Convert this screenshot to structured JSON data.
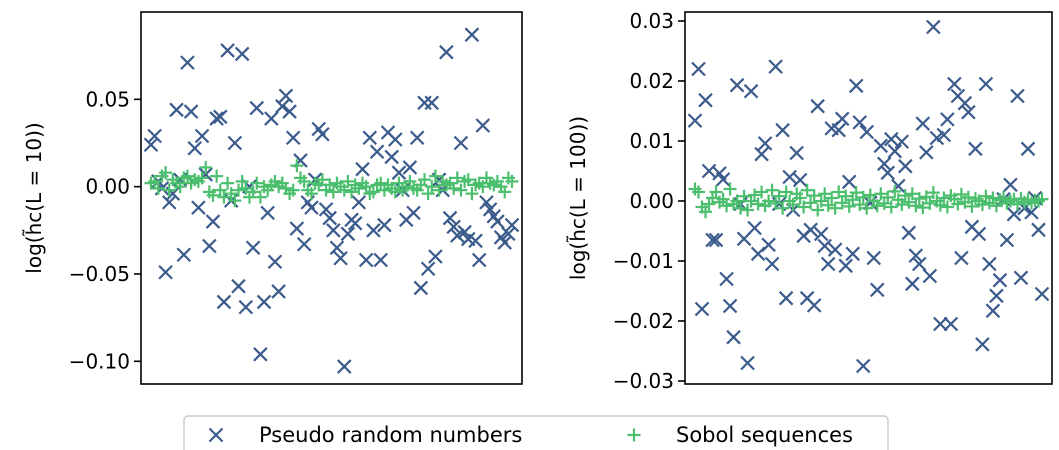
{
  "legend": {
    "placement": "bottom-center",
    "entries": [
      {
        "label": "Pseudo random numbers",
        "marker": "x",
        "color": "#3b5b8c"
      },
      {
        "label": "Sobol sequences",
        "marker": "+",
        "color": "#4cbf6e"
      }
    ]
  },
  "chart_data": [
    {
      "type": "scatter",
      "title": "",
      "xlabel": "",
      "ylabel": "log(h̃c(L = 10))",
      "x_ticks_visible": false,
      "ylim": [
        -0.113,
        0.1
      ],
      "yticks": [
        {
          "value": 0.05,
          "label": "0.05"
        },
        {
          "value": 0.0,
          "label": "0.00"
        },
        {
          "value": -0.05,
          "label": "−0.05"
        },
        {
          "value": -0.1,
          "label": "−0.10"
        }
      ],
      "grid": false,
      "series": [
        {
          "name": "Pseudo random numbers",
          "marker": "x",
          "color": "#3b5b8c",
          "x": [
            1,
            2,
            3,
            4,
            5,
            6,
            7,
            8,
            9,
            10,
            11,
            12,
            13,
            14,
            15,
            16,
            17,
            18,
            19,
            20,
            21,
            22,
            23,
            24,
            25,
            26,
            27,
            28,
            29,
            30,
            31,
            32,
            33,
            34,
            35,
            36,
            37,
            38,
            39,
            40,
            41,
            42,
            43,
            44,
            45,
            46,
            47,
            48,
            49,
            50,
            51,
            52,
            53,
            54,
            55,
            56,
            57,
            58,
            59,
            60,
            61,
            62,
            63,
            64,
            65,
            66,
            67,
            68,
            69,
            70,
            71,
            72,
            73,
            74,
            75,
            76,
            77,
            78,
            79,
            80,
            81,
            82,
            83,
            84,
            85,
            86,
            87,
            88,
            89,
            90,
            91,
            92,
            93,
            94,
            95,
            96,
            97,
            98,
            99,
            100
          ],
          "y": [
            0.024,
            0.029,
            0.003,
            -0.001,
            -0.049,
            -0.009,
            -0.004,
            0.044,
            0.004,
            -0.039,
            0.071,
            0.043,
            0.022,
            -0.012,
            0.029,
            0.007,
            -0.034,
            -0.02,
            0.039,
            0.04,
            -0.066,
            0.078,
            -0.008,
            0.025,
            -0.057,
            0.076,
            -0.069,
            0.0,
            -0.035,
            0.045,
            -0.096,
            -0.066,
            -0.015,
            0.039,
            -0.043,
            -0.06,
            0.046,
            0.052,
            0.043,
            0.028,
            -0.024,
            0.015,
            -0.033,
            -0.009,
            -0.012,
            0.004,
            0.033,
            0.03,
            -0.013,
            -0.018,
            -0.025,
            -0.035,
            -0.041,
            -0.103,
            -0.027,
            -0.019,
            -0.021,
            -0.009,
            0.01,
            -0.042,
            0.028,
            -0.025,
            0.02,
            -0.042,
            -0.022,
            0.031,
            0.017,
            0.027,
            0.008,
            -0.002,
            -0.019,
            0.011,
            -0.015,
            0.028,
            -0.058,
            0.048,
            -0.047,
            0.048,
            -0.04,
            0.004,
            -0.002,
            0.077,
            -0.018,
            -0.023,
            -0.028,
            0.025,
            -0.026,
            -0.03,
            0.087,
            -0.031,
            -0.042,
            0.035,
            -0.009,
            -0.013,
            -0.017,
            -0.02,
            -0.029,
            -0.032,
            -0.027,
            -0.022
          ]
        },
        {
          "name": "Sobol sequences",
          "marker": "+",
          "color": "#4cbf6e",
          "x": [
            1,
            2,
            3,
            4,
            5,
            6,
            7,
            8,
            9,
            10,
            11,
            12,
            13,
            14,
            15,
            16,
            17,
            18,
            19,
            20,
            21,
            22,
            23,
            24,
            25,
            26,
            27,
            28,
            29,
            30,
            31,
            32,
            33,
            34,
            35,
            36,
            37,
            38,
            39,
            40,
            41,
            42,
            43,
            44,
            45,
            46,
            47,
            48,
            49,
            50,
            51,
            52,
            53,
            54,
            55,
            56,
            57,
            58,
            59,
            60,
            61,
            62,
            63,
            64,
            65,
            66,
            67,
            68,
            69,
            70,
            71,
            72,
            73,
            74,
            75,
            76,
            77,
            78,
            79,
            80,
            81,
            82,
            83,
            84,
            85,
            86,
            87,
            88,
            89,
            90,
            91,
            92,
            93,
            94,
            95,
            96,
            97,
            98,
            99,
            100
          ],
          "y": [
            0.002,
            0.003,
            -0.001,
            0.006,
            0.008,
            -0.002,
            0.004,
            0.002,
            0.0,
            0.005,
            0.006,
            0.002,
            0.004,
            0.003,
            0.005,
            0.011,
            -0.003,
            -0.005,
            0.006,
            -0.002,
            -0.006,
            0.002,
            -0.004,
            -0.008,
            -0.002,
            0.003,
            -0.001,
            -0.006,
            -0.003,
            0.002,
            -0.006,
            0.0,
            -0.002,
            0.001,
            0.003,
            0.0,
            0.002,
            -0.001,
            -0.004,
            -0.002,
            0.012,
            0.005,
            0.003,
            -0.002,
            -0.004,
            0.002,
            0.001,
            0.004,
            -0.002,
            0.001,
            -0.003,
            0.002,
            0.0,
            -0.002,
            0.003,
            -0.003,
            0.001,
            -0.001,
            0.002,
            0.0,
            -0.004,
            -0.003,
            0.001,
            0.002,
            -0.002,
            0.001,
            -0.001,
            -0.003,
            0.002,
            -0.002,
            0.0,
            0.003,
            -0.001,
            -0.002,
            0.001,
            0.004,
            -0.004,
            0.0,
            0.006,
            -0.002,
            0.003,
            0.001,
            0.002,
            -0.001,
            0.005,
            -0.002,
            0.003,
            0.004,
            -0.004,
            0.001,
            0.002,
            0.0,
            0.005,
            0.002,
            0.001,
            0.003,
            0.0,
            -0.003,
            0.005,
            0.003
          ]
        }
      ]
    },
    {
      "type": "scatter",
      "title": "",
      "xlabel": "",
      "ylabel": "log(h̃c(L = 100))",
      "x_ticks_visible": false,
      "ylim": [
        -0.0305,
        0.0315
      ],
      "yticks": [
        {
          "value": 0.03,
          "label": "0.03"
        },
        {
          "value": 0.02,
          "label": "0.02"
        },
        {
          "value": 0.01,
          "label": "0.01"
        },
        {
          "value": 0.0,
          "label": "0.00"
        },
        {
          "value": -0.01,
          "label": "−0.01"
        },
        {
          "value": -0.02,
          "label": "−0.02"
        },
        {
          "value": -0.03,
          "label": "−0.03"
        }
      ],
      "grid": false,
      "series": [
        {
          "name": "Pseudo random numbers",
          "marker": "x",
          "color": "#3b5b8c",
          "x": [
            1,
            2,
            3,
            4,
            5,
            6,
            7,
            8,
            9,
            10,
            11,
            12,
            13,
            14,
            15,
            16,
            17,
            18,
            19,
            20,
            21,
            22,
            23,
            24,
            25,
            26,
            27,
            28,
            29,
            30,
            31,
            32,
            33,
            34,
            35,
            36,
            37,
            38,
            39,
            40,
            41,
            42,
            43,
            44,
            45,
            46,
            47,
            48,
            49,
            50,
            51,
            52,
            53,
            54,
            55,
            56,
            57,
            58,
            59,
            60,
            61,
            62,
            63,
            64,
            65,
            66,
            67,
            68,
            69,
            70,
            71,
            72,
            73,
            74,
            75,
            76,
            77,
            78,
            79,
            80,
            81,
            82,
            83,
            84,
            85,
            86,
            87,
            88,
            89,
            90,
            91,
            92,
            93,
            94,
            95,
            96,
            97,
            98,
            99,
            100
          ],
          "y": [
            0.0134,
            0.022,
            -0.018,
            0.0168,
            0.005,
            -0.0065,
            -0.0065,
            0.0046,
            0.0036,
            -0.013,
            -0.0175,
            -0.0227,
            0.0193,
            -0.0005,
            -0.0063,
            -0.027,
            0.0183,
            -0.0045,
            -0.0088,
            0.0078,
            0.0096,
            -0.0073,
            -0.0105,
            0.0224,
            -0.0005,
            0.0118,
            -0.0162,
            0.004,
            -0.0015,
            0.008,
            0.0035,
            -0.0058,
            -0.0162,
            -0.0048,
            -0.0174,
            0.0158,
            -0.0055,
            -0.0075,
            -0.0105,
            0.0121,
            -0.0081,
            0.0118,
            0.0137,
            -0.0108,
            0.0032,
            -0.0088,
            0.0192,
            0.0131,
            -0.0275,
            0.0115,
            -0.0003,
            -0.0095,
            -0.0148,
            0.0092,
            0.0062,
            0.0047,
            0.0103,
            0.0083,
            0.0025,
            0.0099,
            0.0058,
            -0.0053,
            -0.0138,
            -0.0091,
            -0.0105,
            0.0129,
            0.0081,
            -0.0125,
            0.029,
            0.0105,
            -0.0205,
            0.011,
            0.0136,
            -0.0205,
            0.0195,
            0.0175,
            -0.0095,
            0.0163,
            0.0148,
            -0.0043,
            0.0087,
            -0.0055,
            -0.0239,
            0.0195,
            -0.0105,
            -0.0183,
            -0.0158,
            -0.0132,
            0.0003,
            -0.0065,
            0.0027,
            -0.0022,
            0.0175,
            -0.0128,
            -0.0012,
            0.0087,
            -0.0019,
            0.0005,
            -0.0048,
            -0.0155
          ]
        },
        {
          "name": "Sobol sequences",
          "marker": "+",
          "color": "#4cbf6e",
          "x": [
            1,
            2,
            3,
            4,
            5,
            6,
            7,
            8,
            9,
            10,
            11,
            12,
            13,
            14,
            15,
            16,
            17,
            18,
            19,
            20,
            21,
            22,
            23,
            24,
            25,
            26,
            27,
            28,
            29,
            30,
            31,
            32,
            33,
            34,
            35,
            36,
            37,
            38,
            39,
            40,
            41,
            42,
            43,
            44,
            45,
            46,
            47,
            48,
            49,
            50,
            51,
            52,
            53,
            54,
            55,
            56,
            57,
            58,
            59,
            60,
            61,
            62,
            63,
            64,
            65,
            66,
            67,
            68,
            69,
            70,
            71,
            72,
            73,
            74,
            75,
            76,
            77,
            78,
            79,
            80,
            81,
            82,
            83,
            84,
            85,
            86,
            87,
            88,
            89,
            90,
            91,
            92,
            93,
            94,
            95,
            96,
            97,
            98,
            99,
            100
          ],
          "y": [
            0.002,
            0.0015,
            -0.001,
            -0.0018,
            -0.0005,
            0.0005,
            0.0015,
            -0.0002,
            0.0003,
            -0.0008,
            0.002,
            -0.0005,
            0.0,
            -0.0012,
            0.0008,
            -0.0015,
            0.0,
            0.001,
            -0.0005,
            0.0015,
            -0.0008,
            0.0,
            0.0018,
            -0.0004,
            0.0008,
            -0.0012,
            0.0015,
            0.0,
            -0.0006,
            0.0012,
            0.0005,
            -0.001,
            0.0018,
            -0.0003,
            0.0009,
            -0.0015,
            0.0,
            0.0012,
            -0.0007,
            0.0005,
            -0.0012,
            0.0015,
            -0.0003,
            0.0008,
            -0.0009,
            0.0002,
            0.0014,
            -0.0006,
            0.0006,
            -0.0012,
            0.001,
            0.0,
            -0.0008,
            0.0012,
            -0.0004,
            0.0006,
            -0.001,
            0.0016,
            0.0002,
            -0.0006,
            0.0009,
            -0.0002,
            0.0012,
            -0.0008,
            0.0004,
            -0.0011,
            0.0007,
            -0.0004,
            0.0014,
            0.0,
            -0.0007,
            0.0005,
            -0.001,
            0.0009,
            0.0003,
            -0.0005,
            0.0011,
            -0.0002,
            0.0006,
            -0.0009,
            0.0004,
            0.0,
            -0.0006,
            0.0008,
            -0.0003,
            0.0005,
            -0.0008,
            0.0002,
            0.0006,
            -0.0004,
            0.0,
            0.0003,
            -0.0005,
            0.0004,
            -0.0002,
            0.0002,
            -0.0003,
            0.0001,
            0.0,
            0.0003
          ]
        }
      ]
    }
  ]
}
